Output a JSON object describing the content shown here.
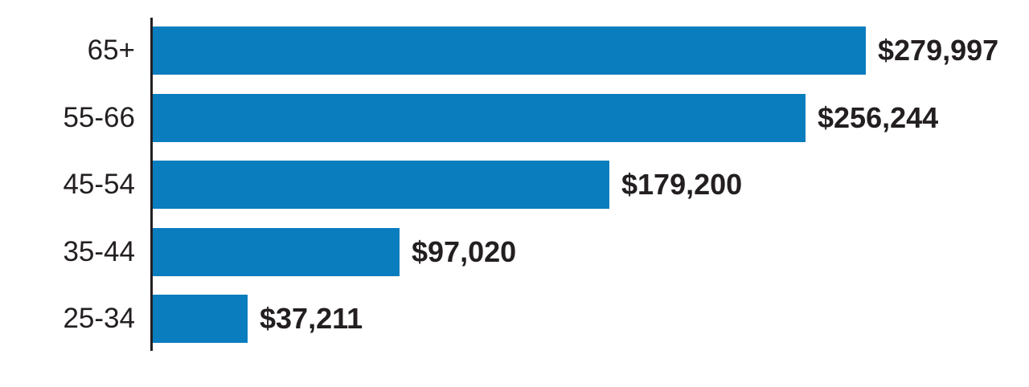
{
  "chart_data": {
    "type": "bar",
    "orientation": "horizontal",
    "title": "",
    "xlabel": "",
    "ylabel": "",
    "categories": [
      "65+",
      "55-66",
      "45-54",
      "35-44",
      "25-34"
    ],
    "values": [
      279997,
      256244,
      179200,
      97020,
      37211
    ],
    "display_values": [
      "$279,997",
      "$256,244",
      "$179,200",
      "$97,020",
      "$37,211"
    ],
    "xlim": [
      0,
      300000
    ],
    "grid": false,
    "legend": false,
    "bar_color": "#0a7dbe",
    "axis_color": "#231f20",
    "text_color": "#231f20"
  }
}
